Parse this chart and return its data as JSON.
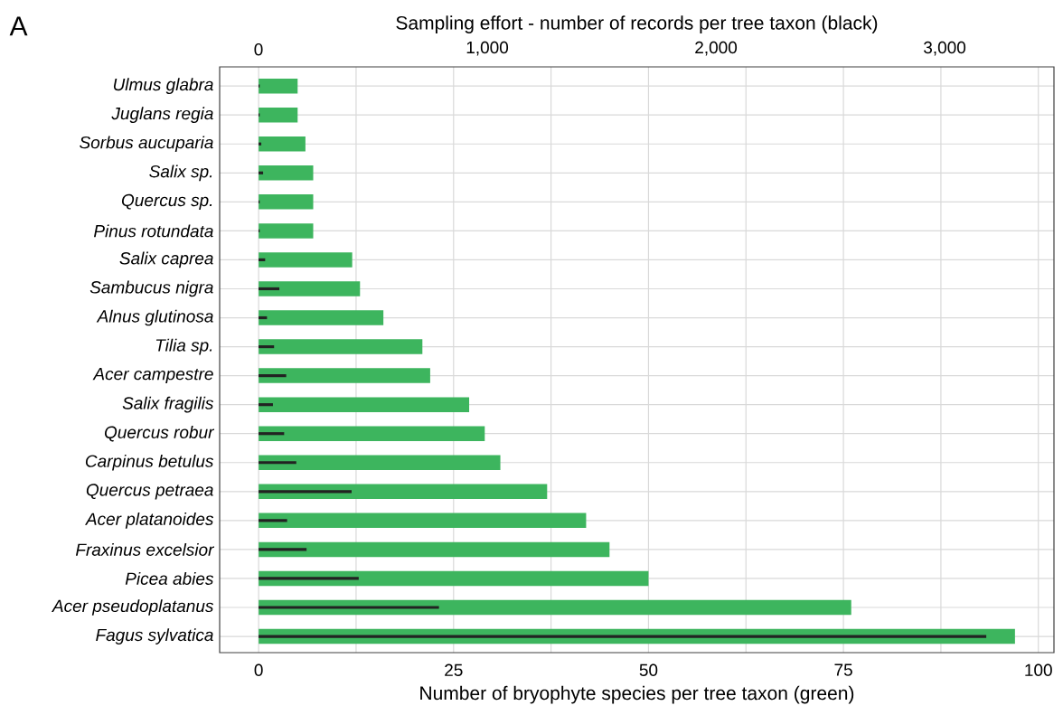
{
  "chart_data": {
    "type": "bar",
    "orientation": "horizontal",
    "xlabel": "Number of bryophyte species per tree taxon (green)",
    "x2label": "Sampling effort - number of records per tree taxon (black)",
    "annotations": [
      "A"
    ],
    "categories": [
      "Ulmus glabra",
      "Juglans regia",
      "Sorbus aucuparia",
      "Salix sp.",
      "Quercus sp.",
      "Pinus rotundata",
      "Salix caprea",
      "Sambucus nigra",
      "Alnus glutinosa",
      "Tilia sp.",
      "Acer campestre",
      "Salix fragilis",
      "Quercus robur",
      "Carpinus betulus",
      "Quercus petraea",
      "Acer platanoides",
      "Fraxinus excelsior",
      "Picea abies",
      "Acer pseudoplatanus",
      "Fagus sylvatica"
    ],
    "series": [
      {
        "color": "#3db55e",
        "values": [
          5,
          5,
          6,
          7,
          7,
          7,
          12,
          13,
          16,
          21,
          22,
          27,
          29,
          31,
          37,
          42,
          45,
          50,
          76,
          97
        ]
      },
      {
        "color": "#222222",
        "axis": "x2",
        "values": [
          5,
          5,
          12,
          20,
          5,
          5,
          29,
          91,
          37,
          68,
          121,
          63,
          112,
          165,
          407,
          125,
          210,
          438,
          789,
          3182
        ]
      }
    ],
    "xlim": [
      -5,
      102
    ],
    "xticks": [
      0,
      {
        "value": 12.5,
        "label": null
      },
      25,
      {
        "value": 37.5,
        "label": null
      },
      50,
      {
        "value": 62.5,
        "label": null
      },
      75,
      {
        "value": 87.5,
        "label": null
      },
      100
    ],
    "x2lim": [
      -170,
      3478
    ],
    "x2ticks": [
      0,
      {
        "value": 1000,
        "label": "1,000"
      },
      {
        "value": 2000,
        "label": "2,000"
      },
      {
        "value": 3000,
        "label": "3,000"
      }
    ],
    "grid": true
  }
}
